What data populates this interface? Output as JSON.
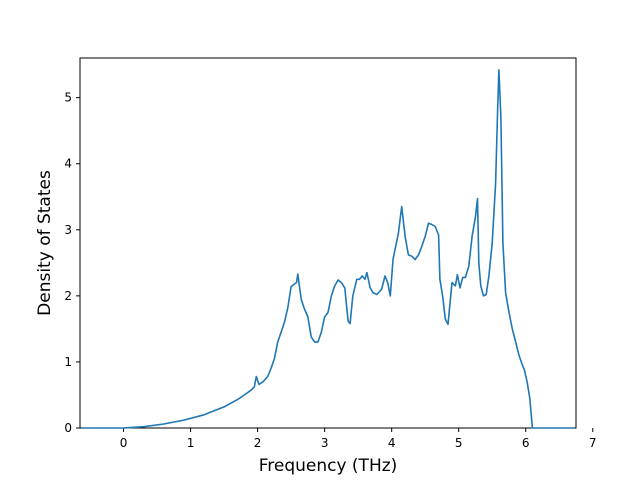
{
  "chart_data": {
    "type": "line",
    "title": "",
    "xlabel": "Frequency (THz)",
    "ylabel": "Density of States",
    "xlim": [
      -0.65,
      6.75
    ],
    "ylim": [
      0,
      5.6
    ],
    "xticks": [
      0,
      1,
      2,
      3,
      4,
      5,
      6,
      7
    ],
    "xtick_labels": [
      "0",
      "1",
      "2",
      "3",
      "4",
      "5",
      "6",
      "7"
    ],
    "yticks": [
      0,
      1,
      2,
      3,
      4,
      5
    ],
    "ytick_labels": [
      "0",
      "1",
      "2",
      "3",
      "4",
      "5"
    ],
    "grid": false,
    "legend": "none",
    "series": [
      {
        "color": "#1f77b4",
        "x": [
          -0.62,
          0.0,
          0.3,
          0.6,
          0.9,
          1.2,
          1.5,
          1.7,
          1.8,
          1.9,
          1.95,
          1.98,
          2.02,
          2.08,
          2.15,
          2.2,
          2.25,
          2.3,
          2.35,
          2.4,
          2.45,
          2.5,
          2.55,
          2.58,
          2.6,
          2.65,
          2.7,
          2.75,
          2.8,
          2.85,
          2.9,
          2.95,
          3.0,
          3.05,
          3.1,
          3.15,
          3.2,
          3.25,
          3.3,
          3.35,
          3.38,
          3.42,
          3.48,
          3.52,
          3.56,
          3.6,
          3.63,
          3.68,
          3.72,
          3.78,
          3.85,
          3.9,
          3.94,
          3.98,
          4.02,
          4.06,
          4.1,
          4.15,
          4.2,
          4.25,
          4.3,
          4.35,
          4.4,
          4.45,
          4.5,
          4.55,
          4.6,
          4.65,
          4.7,
          4.72,
          4.76,
          4.8,
          4.84,
          4.9,
          4.95,
          4.98,
          5.02,
          5.06,
          5.1,
          5.15,
          5.2,
          5.25,
          5.28,
          5.3,
          5.33,
          5.37,
          5.41,
          5.45,
          5.5,
          5.55,
          5.58,
          5.6,
          5.63,
          5.66,
          5.7,
          5.75,
          5.8,
          5.85,
          5.9,
          5.95,
          5.98,
          6.02,
          6.06,
          6.1,
          6.3,
          6.72
        ],
        "y": [
          0.0,
          0.0,
          0.02,
          0.06,
          0.12,
          0.2,
          0.32,
          0.43,
          0.5,
          0.57,
          0.62,
          0.78,
          0.66,
          0.7,
          0.78,
          0.9,
          1.05,
          1.3,
          1.45,
          1.6,
          1.82,
          2.14,
          2.18,
          2.2,
          2.33,
          1.95,
          1.8,
          1.68,
          1.38,
          1.3,
          1.3,
          1.45,
          1.68,
          1.75,
          2.0,
          2.15,
          2.24,
          2.2,
          2.12,
          1.62,
          1.58,
          2.0,
          2.25,
          2.25,
          2.3,
          2.25,
          2.35,
          2.12,
          2.05,
          2.02,
          2.1,
          2.3,
          2.2,
          2.0,
          2.55,
          2.75,
          2.95,
          3.35,
          2.9,
          2.62,
          2.6,
          2.55,
          2.62,
          2.75,
          2.9,
          3.1,
          3.08,
          3.05,
          2.92,
          2.25,
          2.0,
          1.65,
          1.57,
          2.2,
          2.15,
          2.32,
          2.12,
          2.28,
          2.28,
          2.45,
          2.9,
          3.2,
          3.47,
          2.5,
          2.15,
          2.0,
          2.02,
          2.3,
          2.8,
          3.7,
          4.8,
          5.42,
          4.7,
          2.8,
          2.05,
          1.75,
          1.5,
          1.3,
          1.1,
          0.95,
          0.88,
          0.7,
          0.45,
          0.0,
          0.0,
          0.0
        ]
      }
    ]
  }
}
